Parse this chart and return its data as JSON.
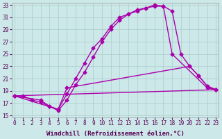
{
  "xlabel": "Windchill (Refroidissement éolien,°C)",
  "xlim": [
    0,
    23
  ],
  "ylim": [
    15,
    33
  ],
  "xticks": [
    0,
    1,
    2,
    3,
    4,
    5,
    6,
    7,
    8,
    9,
    10,
    11,
    12,
    13,
    14,
    15,
    16,
    17,
    18,
    19,
    20,
    21,
    22,
    23
  ],
  "yticks": [
    15,
    17,
    19,
    21,
    23,
    25,
    27,
    29,
    31,
    33
  ],
  "background_color": "#cce8e8",
  "grid_color": "#aacccc",
  "line_color": "#aa00aa",
  "curve1_x": [
    0,
    1,
    2,
    3,
    4,
    5,
    6,
    7,
    8,
    9,
    10,
    11,
    12,
    13,
    14,
    15,
    16,
    17,
    18,
    22,
    23
  ],
  "curve1_y": [
    18.2,
    18.2,
    17.5,
    17.2,
    16.5,
    15.8,
    17.5,
    20.0,
    22.0,
    24.5,
    27.0,
    29.0,
    30.5,
    31.5,
    32.0,
    32.5,
    33.0,
    32.8,
    25.0,
    19.5,
    19.2
  ],
  "curve2_x": [
    0,
    5,
    6,
    7,
    8,
    9,
    10,
    11,
    12,
    13,
    14,
    15,
    16,
    17,
    18,
    19,
    20,
    21,
    22,
    23
  ],
  "curve2_y": [
    18.2,
    16.0,
    18.5,
    21.0,
    23.5,
    26.0,
    27.5,
    29.5,
    31.0,
    31.5,
    32.2,
    32.5,
    32.8,
    32.8,
    32.0,
    25.0,
    23.0,
    21.5,
    19.8,
    19.2
  ],
  "curve3_x": [
    0,
    3,
    4,
    5,
    6,
    20,
    21,
    22,
    23
  ],
  "curve3_y": [
    18.2,
    17.5,
    16.5,
    16.0,
    19.5,
    23.0,
    21.5,
    19.8,
    19.2
  ],
  "curve4_x": [
    0,
    23
  ],
  "curve4_y": [
    18.2,
    19.2
  ],
  "marker": "D",
  "markersize": 2.5,
  "linewidth": 1.0,
  "tick_fontsize": 5.5,
  "xlabel_fontsize": 6.5
}
